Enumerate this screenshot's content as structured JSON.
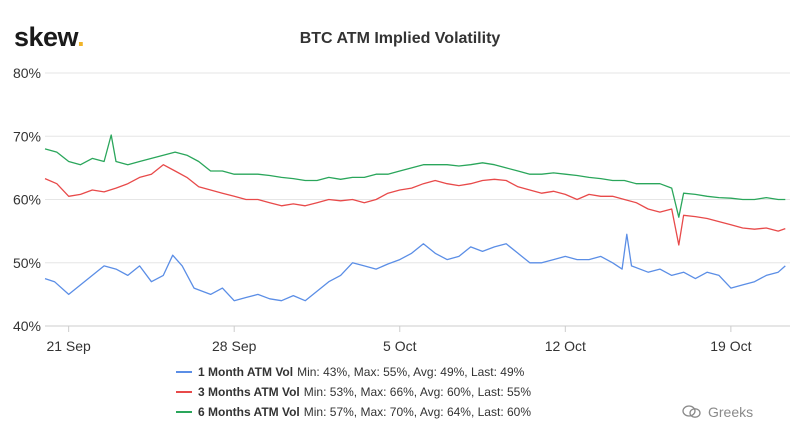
{
  "logo": {
    "text": "skew",
    "dot": "."
  },
  "watermark": {
    "text": "Greeks"
  },
  "colors": {
    "one_month": "#5b8ee6",
    "three_months": "#e84a4a",
    "six_months": "#2aa65b",
    "grid": "#e6e6e6",
    "axis": "#cccccc"
  },
  "chart_data": {
    "type": "line",
    "title": "BTC ATM Implied Volatility",
    "xlabel": "",
    "ylabel": "",
    "ylim": [
      40,
      80
    ],
    "y_ticks": [
      40,
      50,
      60,
      70,
      80
    ],
    "y_tick_labels": [
      "40%",
      "50%",
      "60%",
      "70%",
      "80%"
    ],
    "x_range_days": [
      0,
      31.5
    ],
    "x_ticks": [
      {
        "day": 1,
        "label": "21 Sep"
      },
      {
        "day": 8,
        "label": "28 Sep"
      },
      {
        "day": 15,
        "label": "5 Oct"
      },
      {
        "day": 22,
        "label": "12 Oct"
      },
      {
        "day": 29,
        "label": "19 Oct"
      }
    ],
    "series": [
      {
        "key": "one_month",
        "name": "1 Month ATM Vol",
        "stats": "Min: 43%, Max: 55%, Avg: 49%, Last: 49%",
        "points": [
          [
            0,
            47.5
          ],
          [
            0.4,
            47
          ],
          [
            1,
            45
          ],
          [
            1.5,
            46.5
          ],
          [
            2,
            48
          ],
          [
            2.5,
            49.5
          ],
          [
            3,
            49
          ],
          [
            3.5,
            48
          ],
          [
            4,
            49.5
          ],
          [
            4.5,
            47
          ],
          [
            5,
            48
          ],
          [
            5.4,
            51.2
          ],
          [
            5.8,
            49.5
          ],
          [
            6.3,
            46
          ],
          [
            7,
            45
          ],
          [
            7.5,
            46
          ],
          [
            8,
            44
          ],
          [
            8.5,
            44.5
          ],
          [
            9,
            45
          ],
          [
            9.5,
            44.3
          ],
          [
            10,
            44
          ],
          [
            10.5,
            44.8
          ],
          [
            11,
            44
          ],
          [
            11.5,
            45.5
          ],
          [
            12,
            47
          ],
          [
            12.5,
            48
          ],
          [
            13,
            50
          ],
          [
            13.5,
            49.5
          ],
          [
            14,
            49
          ],
          [
            14.5,
            49.8
          ],
          [
            15,
            50.5
          ],
          [
            15.5,
            51.5
          ],
          [
            16,
            53
          ],
          [
            16.5,
            51.5
          ],
          [
            17,
            50.5
          ],
          [
            17.5,
            51
          ],
          [
            18,
            52.5
          ],
          [
            18.5,
            51.8
          ],
          [
            19,
            52.5
          ],
          [
            19.5,
            53
          ],
          [
            20,
            51.5
          ],
          [
            20.5,
            50
          ],
          [
            21,
            50
          ],
          [
            21.5,
            50.5
          ],
          [
            22,
            51
          ],
          [
            22.5,
            50.5
          ],
          [
            23,
            50.5
          ],
          [
            23.5,
            51
          ],
          [
            24,
            50
          ],
          [
            24.4,
            49
          ],
          [
            24.6,
            54.5
          ],
          [
            24.8,
            49.5
          ],
          [
            25.5,
            48.5
          ],
          [
            26,
            49
          ],
          [
            26.5,
            48
          ],
          [
            27,
            48.5
          ],
          [
            27.5,
            47.5
          ],
          [
            28,
            48.5
          ],
          [
            28.5,
            48
          ],
          [
            29,
            46
          ],
          [
            29.5,
            46.5
          ],
          [
            30,
            47
          ],
          [
            30.5,
            48
          ],
          [
            31,
            48.5
          ],
          [
            31.3,
            49.5
          ]
        ]
      },
      {
        "key": "three_months",
        "name": "3 Months ATM Vol",
        "stats": "Min: 53%, Max: 66%, Avg: 60%, Last: 55%",
        "points": [
          [
            0,
            63.3
          ],
          [
            0.5,
            62.5
          ],
          [
            1,
            60.5
          ],
          [
            1.5,
            60.8
          ],
          [
            2,
            61.5
          ],
          [
            2.5,
            61.2
          ],
          [
            3,
            61.8
          ],
          [
            3.5,
            62.5
          ],
          [
            4,
            63.5
          ],
          [
            4.5,
            64
          ],
          [
            5,
            65.5
          ],
          [
            5.5,
            64.5
          ],
          [
            6,
            63.5
          ],
          [
            6.5,
            62
          ],
          [
            7,
            61.5
          ],
          [
            7.5,
            61
          ],
          [
            8,
            60.5
          ],
          [
            8.5,
            60
          ],
          [
            9,
            60
          ],
          [
            9.5,
            59.5
          ],
          [
            10,
            59
          ],
          [
            10.5,
            59.3
          ],
          [
            11,
            59
          ],
          [
            11.5,
            59.5
          ],
          [
            12,
            60
          ],
          [
            12.5,
            59.8
          ],
          [
            13,
            60
          ],
          [
            13.5,
            59.5
          ],
          [
            14,
            60
          ],
          [
            14.5,
            61
          ],
          [
            15,
            61.5
          ],
          [
            15.5,
            61.8
          ],
          [
            16,
            62.5
          ],
          [
            16.5,
            63
          ],
          [
            17,
            62.5
          ],
          [
            17.5,
            62.2
          ],
          [
            18,
            62.5
          ],
          [
            18.5,
            63
          ],
          [
            19,
            63.2
          ],
          [
            19.5,
            63
          ],
          [
            20,
            62
          ],
          [
            20.5,
            61.5
          ],
          [
            21,
            61
          ],
          [
            21.5,
            61.3
          ],
          [
            22,
            60.8
          ],
          [
            22.5,
            60
          ],
          [
            23,
            60.8
          ],
          [
            23.5,
            60.5
          ],
          [
            24,
            60.5
          ],
          [
            24.5,
            60
          ],
          [
            25,
            59.5
          ],
          [
            25.5,
            58.5
          ],
          [
            26,
            58
          ],
          [
            26.5,
            58.5
          ],
          [
            26.8,
            52.8
          ],
          [
            27,
            57.5
          ],
          [
            27.5,
            57.3
          ],
          [
            28,
            57
          ],
          [
            28.5,
            56.5
          ],
          [
            29,
            56
          ],
          [
            29.5,
            55.5
          ],
          [
            30,
            55.3
          ],
          [
            30.5,
            55.5
          ],
          [
            31,
            55
          ],
          [
            31.3,
            55.4
          ]
        ]
      },
      {
        "key": "six_months",
        "name": "6 Months ATM Vol",
        "stats": "Min: 57%, Max: 70%, Avg: 64%, Last: 60%",
        "points": [
          [
            0,
            68
          ],
          [
            0.5,
            67.5
          ],
          [
            1,
            66
          ],
          [
            1.5,
            65.5
          ],
          [
            2,
            66.5
          ],
          [
            2.5,
            66
          ],
          [
            2.8,
            70.2
          ],
          [
            3,
            66
          ],
          [
            3.5,
            65.5
          ],
          [
            4,
            66
          ],
          [
            4.5,
            66.5
          ],
          [
            5,
            67
          ],
          [
            5.5,
            67.5
          ],
          [
            6,
            67
          ],
          [
            6.5,
            66
          ],
          [
            7,
            64.5
          ],
          [
            7.5,
            64.5
          ],
          [
            8,
            64
          ],
          [
            8.5,
            64
          ],
          [
            9,
            64
          ],
          [
            9.5,
            63.8
          ],
          [
            10,
            63.5
          ],
          [
            10.5,
            63.3
          ],
          [
            11,
            63
          ],
          [
            11.5,
            63
          ],
          [
            12,
            63.5
          ],
          [
            12.5,
            63.2
          ],
          [
            13,
            63.5
          ],
          [
            13.5,
            63.5
          ],
          [
            14,
            64
          ],
          [
            14.5,
            64
          ],
          [
            15,
            64.5
          ],
          [
            15.5,
            65
          ],
          [
            16,
            65.5
          ],
          [
            16.5,
            65.5
          ],
          [
            17,
            65.5
          ],
          [
            17.5,
            65.3
          ],
          [
            18,
            65.5
          ],
          [
            18.5,
            65.8
          ],
          [
            19,
            65.5
          ],
          [
            19.5,
            65
          ],
          [
            20,
            64.5
          ],
          [
            20.5,
            64
          ],
          [
            21,
            64
          ],
          [
            21.5,
            64.2
          ],
          [
            22,
            64
          ],
          [
            22.5,
            63.8
          ],
          [
            23,
            63.5
          ],
          [
            23.5,
            63.3
          ],
          [
            24,
            63
          ],
          [
            24.5,
            63
          ],
          [
            25,
            62.5
          ],
          [
            25.5,
            62.5
          ],
          [
            26,
            62.5
          ],
          [
            26.5,
            61.8
          ],
          [
            26.8,
            57.2
          ],
          [
            27,
            61
          ],
          [
            27.5,
            60.8
          ],
          [
            28,
            60.5
          ],
          [
            28.5,
            60.3
          ],
          [
            29,
            60.2
          ],
          [
            29.5,
            60
          ],
          [
            30,
            60
          ],
          [
            30.5,
            60.3
          ],
          [
            31,
            60
          ],
          [
            31.3,
            60
          ]
        ]
      }
    ]
  }
}
